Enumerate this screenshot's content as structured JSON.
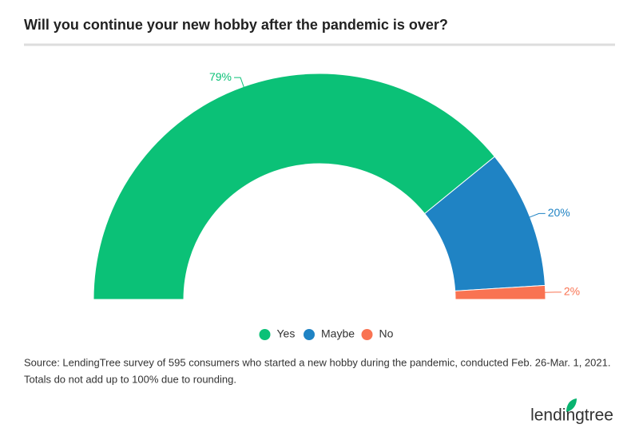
{
  "chart_data": {
    "type": "semi-donut",
    "title": "Will you continue your new hobby after the pandemic is over?",
    "categories": [
      "Yes",
      "Maybe",
      "No"
    ],
    "values": [
      79,
      20,
      2
    ],
    "value_labels": [
      "79%",
      "20%",
      "2%"
    ],
    "colors": [
      "#0bc177",
      "#1f83c4",
      "#f97352"
    ],
    "legend": "bottom",
    "source": [
      "Source: LendingTree survey of 595 consumers who started a new hobby during the pandemic, conducted Feb. 26-Mar. 1, 2021.",
      "Totals do not add up to 100% due to rounding."
    ],
    "logo": "lendingtree"
  }
}
